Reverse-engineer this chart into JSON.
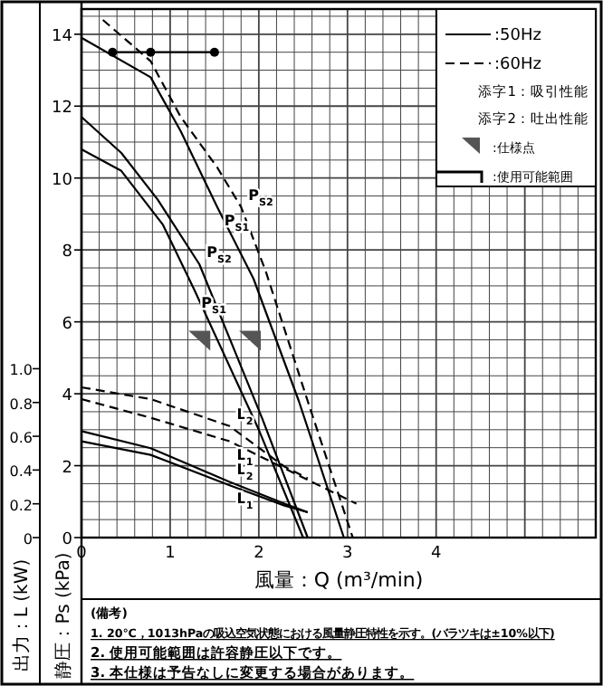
{
  "chart_data": {
    "type": "line",
    "xlabel": "風量：Q (m³/min)",
    "ylabel": "静圧：Ps (kPa)",
    "y2label": "出力：L (kW)",
    "xlim": [
      0,
      5.8
    ],
    "xticks": [
      0,
      1,
      2,
      3,
      4
    ],
    "ylim": [
      0,
      14.7
    ],
    "yticks": [
      0,
      2,
      4,
      6,
      8,
      10,
      12,
      14
    ],
    "y2lim": [
      0,
      3.13
    ],
    "y2ticks": [
      0,
      0.2,
      0.4,
      0.6,
      0.8,
      {
        "value": 1,
        "label": "1.0"
      }
    ],
    "grid": true,
    "series": [
      {
        "name": "P$_{S2}$",
        "color": "#000000",
        "line_style": "dashed",
        "x": [
          0.24,
          0.78,
          1.12,
          1.53,
          1.8,
          2.08,
          2.55,
          3.06
        ],
        "values": [
          14.4,
          13.25,
          11.7,
          10.3,
          9.2,
          7.4,
          3.8,
          0
        ]
      },
      {
        "name": "P$_{S1}$",
        "color": "#000000",
        "line_style": "solid",
        "x": [
          0,
          0.78,
          1.12,
          1.53,
          1.94,
          2.45,
          2.96
        ],
        "values": [
          13.9,
          12.8,
          11.3,
          9.2,
          7.2,
          3.8,
          0
        ]
      },
      {
        "name": "P$_{S2}$",
        "color": "#000000",
        "line_style": "solid",
        "x": [
          0,
          0.45,
          0.86,
          1.33,
          2.04,
          2.55
        ],
        "values": [
          11.7,
          10.7,
          9.4,
          7.6,
          3.3,
          0
        ]
      },
      {
        "name": "P$_{S1}$",
        "color": "#000000",
        "line_style": "solid",
        "x": [
          0,
          0.45,
          0.92,
          1.27,
          2.0,
          2.5
        ],
        "values": [
          10.8,
          10.2,
          8.7,
          6.9,
          3.0,
          0
        ]
      },
      {
        "name": "L$_{2}$",
        "color": "#000000",
        "line_style": "dashed",
        "axis": "y2",
        "x": [
          0,
          0.78,
          1.67,
          2.29,
          2.55
        ],
        "values": [
          0.89,
          0.82,
          0.66,
          0.42,
          0.35
        ]
      },
      {
        "name": "L$_{1}$",
        "color": "#000000",
        "line_style": "dashed",
        "axis": "y2",
        "x": [
          0,
          0.78,
          1.67,
          2.29,
          3.1
        ],
        "values": [
          0.82,
          0.71,
          0.57,
          0.41,
          0.2
        ]
      },
      {
        "name": "L$_{2}$",
        "color": "#000000",
        "line_style": "solid",
        "axis": "y2",
        "x": [
          0,
          0.78,
          1.67,
          2.29,
          2.55
        ],
        "values": [
          0.63,
          0.53,
          0.33,
          0.2,
          0.15
        ]
      },
      {
        "name": "L$_{1}$",
        "color": "#000000",
        "line_style": "solid",
        "axis": "y2",
        "x": [
          0,
          0.78,
          1.67,
          2.29,
          2.55
        ],
        "values": [
          0.57,
          0.49,
          0.31,
          0.19,
          0.15
        ]
      },
      {
        "type": "scatter",
        "marker": "triangle",
        "color": "#555555",
        "x": [
          1.33,
          1.9
        ],
        "values": [
          5.5,
          5.5
        ]
      },
      {
        "type": "line",
        "marker": "circle",
        "color": "#000000",
        "line_style": "solid",
        "x": [
          0.35,
          0.78,
          1.5
        ],
        "values": [
          13.5,
          13.5,
          13.5
        ]
      }
    ],
    "annotations": [
      ":50Hz",
      ":60Hz",
      "添字1：吸引性能",
      "添字2：吐出性能",
      ":仕様点",
      ":使用可能範囲",
      "(備考)",
      "1. 20℃，1013hPaの吸込空気状態における風量静圧特性を示す。(バラツキは±10%以下)",
      "2. 使用可能範囲は許容静圧以下です。",
      "3. 本仕様は予告なしに変更する場合があります。"
    ]
  }
}
